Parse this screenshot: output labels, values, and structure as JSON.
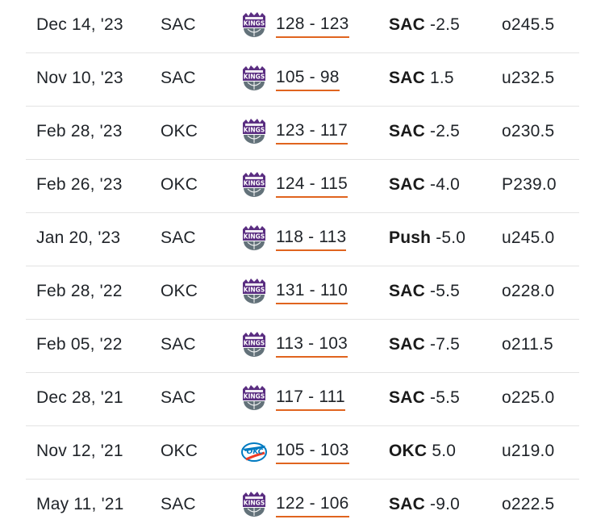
{
  "games": [
    {
      "date": "Dec 14, '23",
      "home": "SAC",
      "winner_logo": "kings-logo-icon",
      "score": "128 - 123",
      "ats_team": "SAC",
      "ats_line": "-2.5",
      "total": "o245.5"
    },
    {
      "date": "Nov 10, '23",
      "home": "SAC",
      "winner_logo": "kings-logo-icon",
      "score": "105 - 98",
      "ats_team": "SAC",
      "ats_line": "1.5",
      "total": "u232.5"
    },
    {
      "date": "Feb 28, '23",
      "home": "OKC",
      "winner_logo": "kings-logo-icon",
      "score": "123 - 117",
      "ats_team": "SAC",
      "ats_line": "-2.5",
      "total": "o230.5"
    },
    {
      "date": "Feb 26, '23",
      "home": "OKC",
      "winner_logo": "kings-logo-icon",
      "score": "124 - 115",
      "ats_team": "SAC",
      "ats_line": "-4.0",
      "total": "P239.0"
    },
    {
      "date": "Jan 20, '23",
      "home": "SAC",
      "winner_logo": "kings-logo-icon",
      "score": "118 - 113",
      "ats_team": "Push",
      "ats_line": "-5.0",
      "total": "u245.0"
    },
    {
      "date": "Feb 28, '22",
      "home": "OKC",
      "winner_logo": "kings-logo-icon",
      "score": "131 - 110",
      "ats_team": "SAC",
      "ats_line": "-5.5",
      "total": "o228.0"
    },
    {
      "date": "Feb 05, '22",
      "home": "SAC",
      "winner_logo": "kings-logo-icon",
      "score": "113 - 103",
      "ats_team": "SAC",
      "ats_line": "-7.5",
      "total": "o211.5"
    },
    {
      "date": "Dec 28, '21",
      "home": "SAC",
      "winner_logo": "kings-logo-icon",
      "score": "117 - 111",
      "ats_team": "SAC",
      "ats_line": "-5.5",
      "total": "o225.0"
    },
    {
      "date": "Nov 12, '21",
      "home": "OKC",
      "winner_logo": "thunder-logo-icon",
      "score": "105 - 103",
      "ats_team": "OKC",
      "ats_line": "5.0",
      "total": "u219.0"
    },
    {
      "date": "May 11, '21",
      "home": "SAC",
      "winner_logo": "kings-logo-icon",
      "score": "122 - 106",
      "ats_team": "SAC",
      "ats_line": "-9.0",
      "total": "o222.5"
    }
  ],
  "colors": {
    "score_underline": "#e0641f",
    "kings_purple": "#5a2d81",
    "kings_gray": "#63727a",
    "thunder_blue": "#007ac1",
    "thunder_orange": "#ef3b24"
  }
}
